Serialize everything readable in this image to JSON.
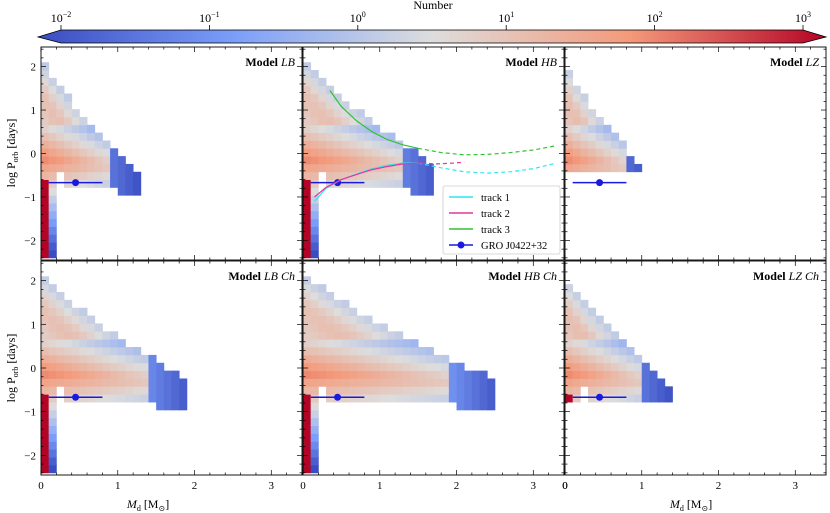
{
  "colorbar": {
    "label": "Number",
    "scale": "log",
    "range": [
      0.01,
      1000
    ],
    "ticks": [
      {
        "base": "10",
        "exp": "−2"
      },
      {
        "base": "10",
        "exp": "−1"
      },
      {
        "base": "10",
        "exp": "0"
      },
      {
        "base": "10",
        "exp": "1"
      },
      {
        "base": "10",
        "exp": "2"
      },
      {
        "base": "10",
        "exp": "3"
      }
    ],
    "colors": {
      "low": "#3b4cc0",
      "mid": "#dddddd",
      "high": "#b40426"
    }
  },
  "axes": {
    "xlabel": {
      "main": "M",
      "sub": "d",
      "unit": " [M",
      "sun": "⊙",
      "close": "]"
    },
    "ylabel": {
      "main": "log P",
      "sub": "orb",
      "unit": " [days]"
    },
    "xticks": [
      "0",
      "1",
      "2",
      "3"
    ],
    "yticks": [
      "2",
      "1",
      "0",
      "−1",
      "−2"
    ],
    "xlim": [
      0,
      3.4
    ],
    "ylim": [
      -2.45,
      2.45
    ]
  },
  "chart_data": [
    {
      "type": "heatmap",
      "title": {
        "prefix": "Model ",
        "name": "LB"
      },
      "xmax": 1.2,
      "ymax": 2.1
    },
    {
      "type": "heatmap",
      "title": {
        "prefix": "Model ",
        "name": "HB"
      },
      "xmax": 1.7,
      "ymax": 2.1
    },
    {
      "type": "heatmap",
      "title": {
        "prefix": "Model ",
        "name": "LZ"
      },
      "xmax": 1.0,
      "ymax": 2.0
    },
    {
      "type": "heatmap",
      "title": {
        "prefix": "Model ",
        "name": "LB Ch"
      },
      "xmax": 1.9,
      "ymax": 2.1
    },
    {
      "type": "heatmap",
      "title": {
        "prefix": "Model ",
        "name": "HB Ch"
      },
      "xmax": 2.5,
      "ymax": 2.1
    },
    {
      "type": "heatmap",
      "title": {
        "prefix": "Model ",
        "name": "LZ Ch"
      },
      "xmax": 1.3,
      "ymax": 2.0
    }
  ],
  "observation": {
    "name": "GRO J0422+32",
    "x": 0.45,
    "y": -0.67,
    "xerr": [
      0.35,
      0.35
    ],
    "color": "#1a1adf"
  },
  "tracks": [
    {
      "name": "track 1",
      "color": "#2ee6ee",
      "solid_x": [
        0.15,
        0.3,
        0.5,
        0.7,
        0.9,
        1.1,
        1.3,
        1.5
      ],
      "solid_y": [
        -1.1,
        -0.8,
        -0.6,
        -0.47,
        -0.35,
        -0.27,
        -0.22,
        -0.22
      ],
      "dashed_x": [
        1.5,
        1.8,
        2.1,
        2.4,
        2.7,
        3.0,
        3.3
      ],
      "dashed_y": [
        -0.22,
        -0.33,
        -0.42,
        -0.45,
        -0.42,
        -0.35,
        -0.22
      ]
    },
    {
      "name": "track 2",
      "color": "#e6359e",
      "solid_x": [
        0.15,
        0.3,
        0.5,
        0.7,
        0.9,
        1.1,
        1.3,
        1.55
      ],
      "solid_y": [
        -1.0,
        -0.78,
        -0.6,
        -0.48,
        -0.37,
        -0.3,
        -0.24,
        -0.22
      ],
      "dashed_x": [
        1.55,
        1.75,
        1.95,
        2.1
      ],
      "dashed_y": [
        -0.22,
        -0.24,
        -0.22,
        -0.2
      ]
    },
    {
      "name": "track 3",
      "color": "#33c233",
      "solid_x": [
        0.35,
        0.5,
        0.7,
        0.9,
        1.1,
        1.3,
        1.5
      ],
      "solid_y": [
        1.45,
        1.08,
        0.75,
        0.5,
        0.32,
        0.2,
        0.12
      ],
      "dashed_x": [
        1.5,
        1.8,
        2.1,
        2.4,
        2.7,
        3.0,
        3.3
      ],
      "dashed_y": [
        0.12,
        0.02,
        -0.03,
        -0.02,
        0.02,
        0.08,
        0.18
      ]
    }
  ]
}
